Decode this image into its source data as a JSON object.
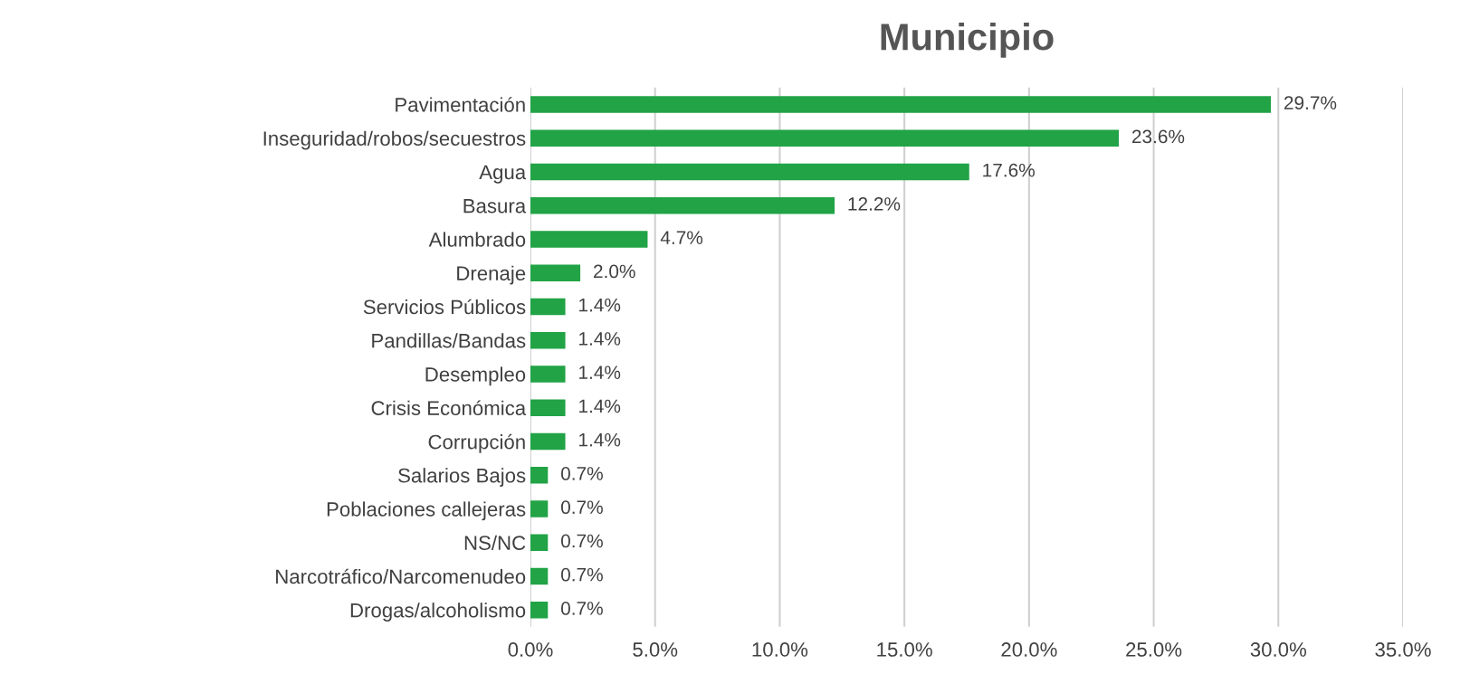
{
  "chart_data": {
    "type": "bar",
    "orientation": "horizontal",
    "title": "Municipio",
    "categories": [
      "Pavimentación",
      "Inseguridad/robos/secuestros",
      "Agua",
      "Basura",
      "Alumbrado",
      "Drenaje",
      "Servicios Públicos",
      "Pandillas/Bandas",
      "Desempleo",
      "Crisis Económica",
      "Corrupción",
      "Salarios Bajos",
      "Poblaciones callejeras",
      "NS/NC",
      "Narcotráfico/Narcomenudeo",
      "Drogas/alcoholismo"
    ],
    "values": [
      29.7,
      23.6,
      17.6,
      12.2,
      4.7,
      2.0,
      1.4,
      1.4,
      1.4,
      1.4,
      1.4,
      0.7,
      0.7,
      0.7,
      0.7,
      0.7
    ],
    "value_labels": [
      "29.7%",
      "23.6%",
      "17.6%",
      "12.2%",
      "4.7%",
      "2.0%",
      "1.4%",
      "1.4%",
      "1.4%",
      "1.4%",
      "1.4%",
      "0.7%",
      "0.7%",
      "0.7%",
      "0.7%",
      "0.7%"
    ],
    "color": "#21a346",
    "xlim": [
      0,
      35
    ],
    "xticks": [
      {
        "value": 0,
        "label": "0.0%"
      },
      {
        "value": 5,
        "label": "5.0%"
      },
      {
        "value": 10,
        "label": "10.0%"
      },
      {
        "value": 15,
        "label": "15.0%"
      },
      {
        "value": 20,
        "label": "20.0%"
      },
      {
        "value": 25,
        "label": "25.0%"
      },
      {
        "value": 30,
        "label": "30.0%"
      },
      {
        "value": 35,
        "label": "35.0%"
      }
    ],
    "grid": "x"
  }
}
